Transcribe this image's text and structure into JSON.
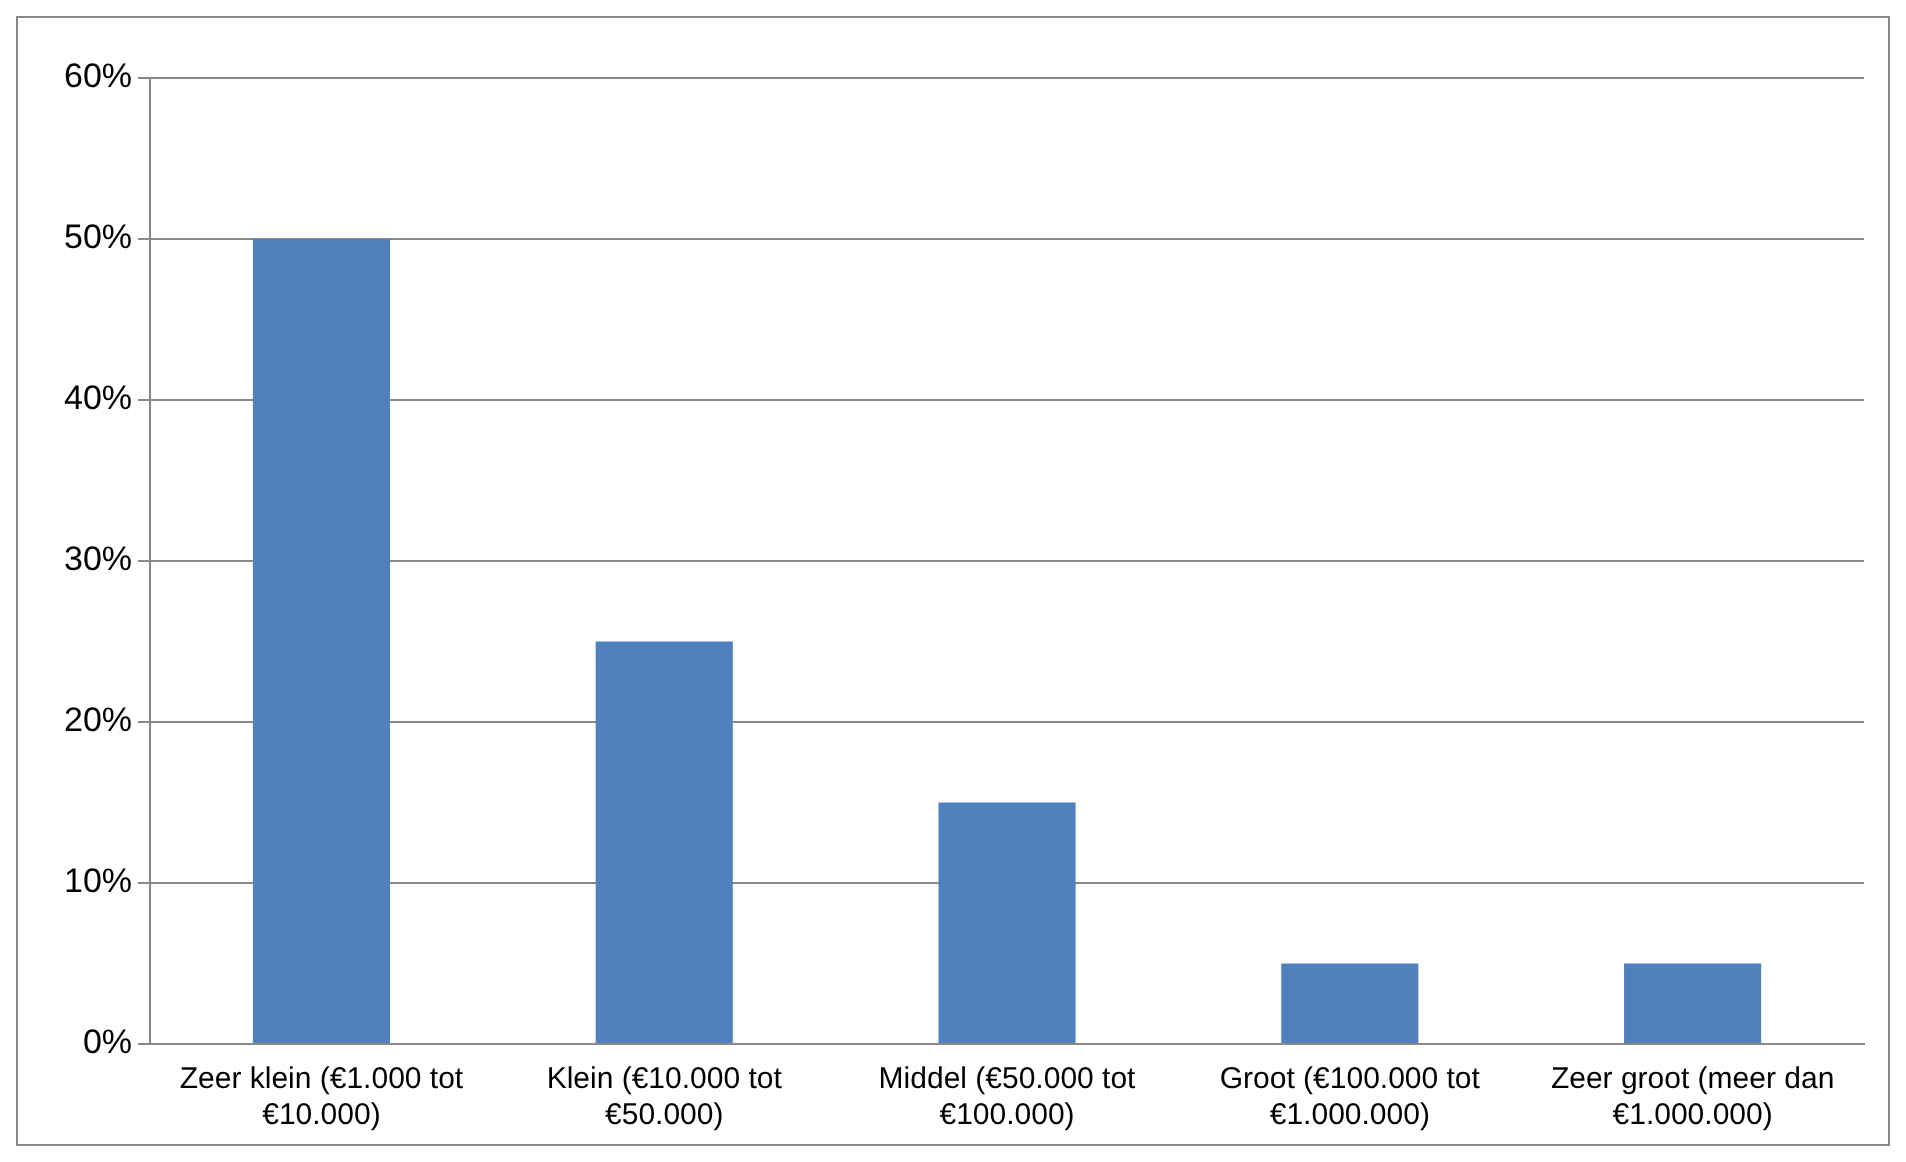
{
  "chart_data": {
    "type": "bar",
    "categories": [
      "Zeer klein (€1.000 tot €10.000)",
      "Klein (€10.000 tot €50.000)",
      "Middel (€50.000 tot €100.000)",
      "Groot (€100.000 tot €1.000.000)",
      "Zeer groot (meer dan €1.000.000)"
    ],
    "values": [
      50,
      25,
      15,
      5,
      5
    ],
    "color": "#4f81bd",
    "ylim": [
      0,
      60
    ],
    "yticks": [
      {
        "value": 0,
        "label": "0%"
      },
      {
        "value": 10,
        "label": "10%"
      },
      {
        "value": 20,
        "label": "20%"
      },
      {
        "value": 30,
        "label": "30%"
      },
      {
        "value": 40,
        "label": "40%"
      },
      {
        "value": 50,
        "label": "50%"
      },
      {
        "value": 60,
        "label": "60%"
      }
    ],
    "grid": "y",
    "legend": false
  }
}
